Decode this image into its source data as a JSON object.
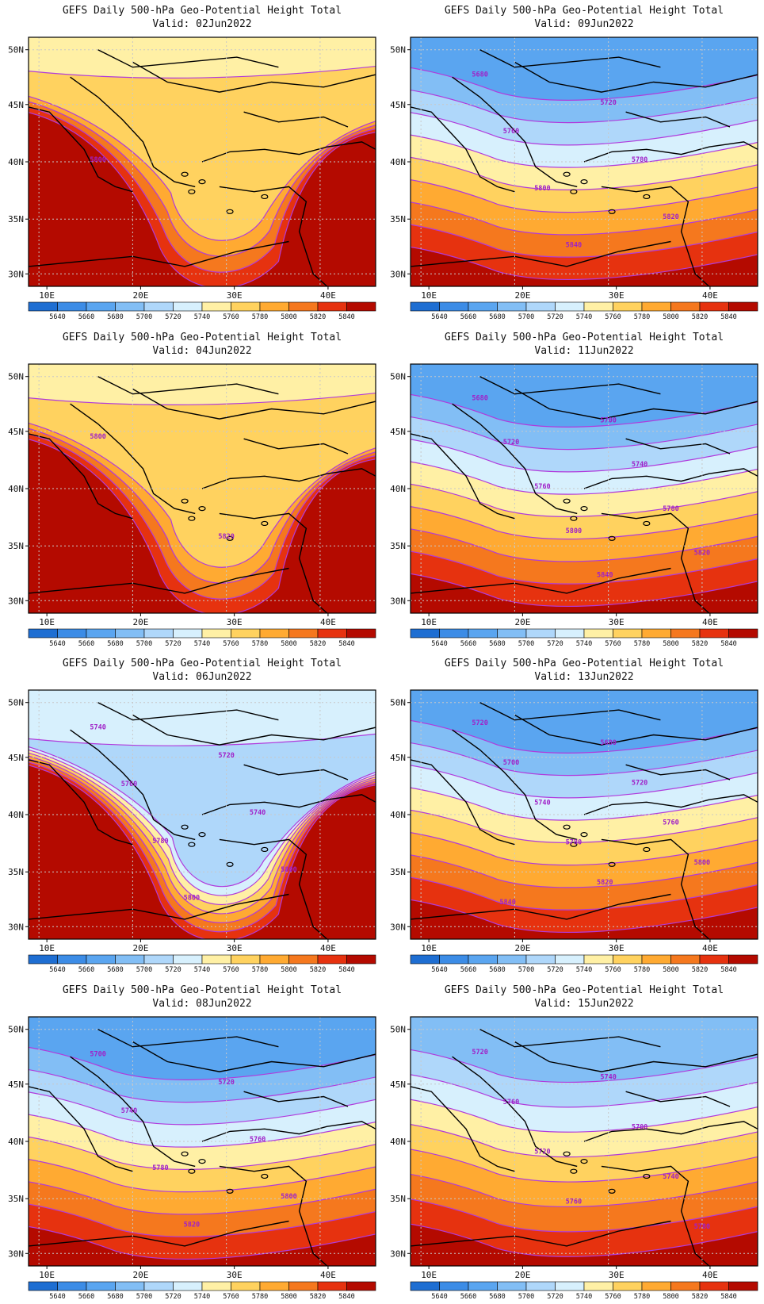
{
  "panels": [
    {
      "title": "GEFS Daily 500-hPa Geo-Potential Height Total",
      "valid": "Valid: 02Jun2022",
      "contour_labels": [
        "5800"
      ]
    },
    {
      "title": "GEFS Daily 500-hPa Geo-Potential Height Total",
      "valid": "Valid: 09Jun2022",
      "contour_labels": [
        "5680",
        "5720",
        "5760",
        "5780",
        "5800",
        "5820",
        "5840"
      ]
    },
    {
      "title": "GEFS Daily 500-hPa Geo-Potential Height Total",
      "valid": "Valid: 04Jun2022",
      "contour_labels": [
        "5800",
        "5820"
      ]
    },
    {
      "title": "GEFS Daily 500-hPa Geo-Potential Height Total",
      "valid": "Valid: 11Jun2022",
      "contour_labels": [
        "5680",
        "5700",
        "5720",
        "5740",
        "5760",
        "5780",
        "5800",
        "5820",
        "5840"
      ]
    },
    {
      "title": "GEFS Daily 500-hPa Geo-Potential Height Total",
      "valid": "Valid: 06Jun2022",
      "contour_labels": [
        "5740",
        "5720",
        "5760",
        "5740",
        "5780",
        "5800",
        "5800"
      ]
    },
    {
      "title": "GEFS Daily 500-hPa Geo-Potential Height Total",
      "valid": "Valid: 13Jun2022",
      "contour_labels": [
        "5720",
        "5680",
        "5700",
        "5720",
        "5740",
        "5760",
        "5780",
        "5800",
        "5820",
        "5840"
      ]
    },
    {
      "title": "GEFS Daily 500-hPa Geo-Potential Height Total",
      "valid": "Valid: 08Jun2022",
      "contour_labels": [
        "5700",
        "5720",
        "5740",
        "5760",
        "5780",
        "5800",
        "5820"
      ]
    },
    {
      "title": "GEFS Daily 500-hPa Geo-Potential Height Total",
      "valid": "Valid: 15Jun2022",
      "contour_labels": [
        "5720",
        "5740",
        "5760",
        "5700",
        "5720",
        "5740",
        "5760",
        "5780"
      ]
    }
  ],
  "axes": {
    "lat_labels": [
      "50N",
      "45N",
      "40N",
      "35N",
      "30N"
    ],
    "lon_labels": [
      "10E",
      "20E",
      "30E",
      "40E"
    ]
  },
  "colorbar": {
    "labels": [
      "5640",
      "5660",
      "5680",
      "5700",
      "5720",
      "5740",
      "5760",
      "5780",
      "5800",
      "5820",
      "5840"
    ],
    "colors": [
      "#1e6ed2",
      "#3c8ce6",
      "#5aa5f0",
      "#82bef5",
      "#afd7fa",
      "#d7f0fd",
      "#fff0a5",
      "#ffd25f",
      "#ffaa32",
      "#f5781e",
      "#e6320f",
      "#b40a00"
    ]
  }
}
